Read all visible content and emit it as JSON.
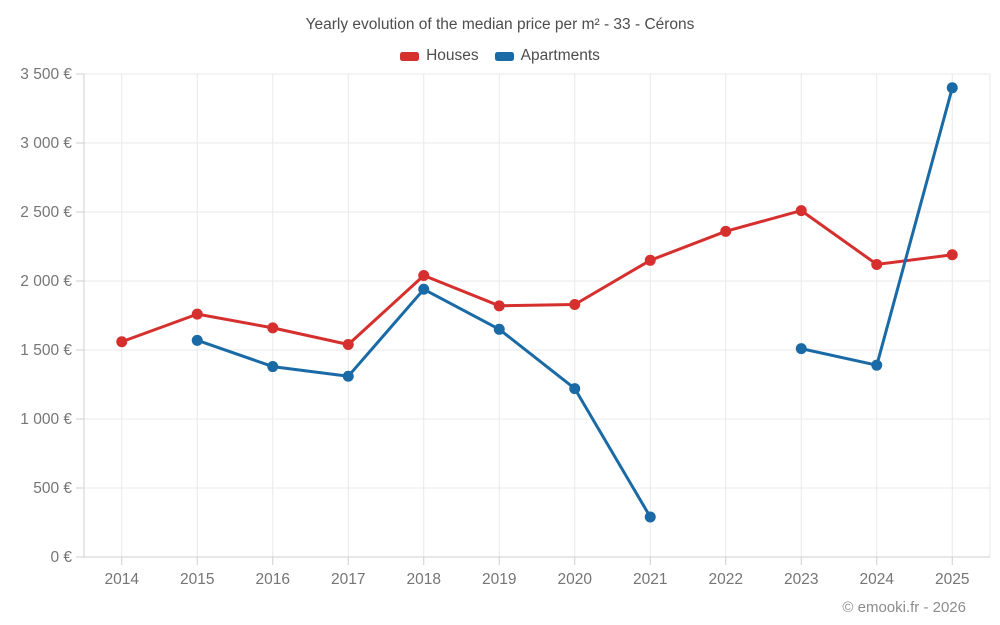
{
  "title": "Yearly evolution of the median price per m² - 33 - Cérons",
  "footer": "© emooki.fr - 2026",
  "colors": {
    "houses": "#d5302e",
    "apartments": "#1a6aa5",
    "grid": "#e9e9e9",
    "axis": "#cfcfcf",
    "tick_text": "#757575",
    "title_text": "#4d4d4d",
    "footer_text": "#8c8c8c"
  },
  "legend": {
    "houses_label": "Houses",
    "apartments_label": "Apartments"
  },
  "chart_data": {
    "type": "line",
    "x": [
      2014,
      2015,
      2016,
      2017,
      2018,
      2019,
      2020,
      2021,
      2022,
      2023,
      2024,
      2025
    ],
    "series": [
      {
        "name": "Houses",
        "color_key": "houses",
        "values": [
          1560,
          1760,
          1660,
          1540,
          2040,
          1820,
          1830,
          2150,
          2360,
          2510,
          2120,
          2190
        ]
      },
      {
        "name": "Apartments",
        "color_key": "apartments",
        "values": [
          null,
          1570,
          1380,
          1310,
          1940,
          1650,
          1220,
          290,
          null,
          1510,
          1390,
          3400
        ]
      }
    ],
    "ylim": [
      0,
      3500
    ],
    "ytick_step": 500,
    "ytick_labels": [
      "0 €",
      "500 €",
      "1 000 €",
      "1 500 €",
      "2 000 €",
      "2 500 €",
      "3 000 €",
      "3 500 €"
    ],
    "grid": true,
    "legend_position": "top",
    "marker": "circle"
  }
}
